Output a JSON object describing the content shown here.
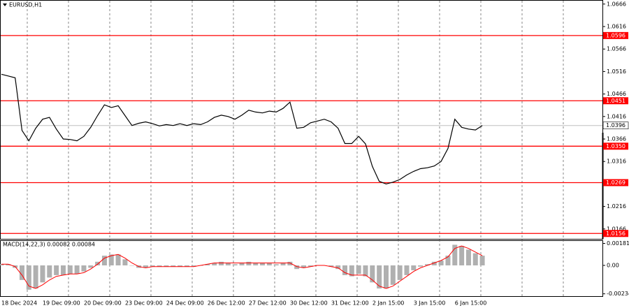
{
  "chart_data": [
    {
      "type": "line",
      "title": "EURUSD,H1",
      "categories": [
        "18 Dec 2024",
        null,
        null,
        null,
        null,
        null,
        "19 Dec 09:00",
        null,
        null,
        null,
        null,
        null,
        "20 Dec 09:00",
        null,
        null,
        null,
        null,
        null,
        "23 Dec 09:00",
        null,
        null,
        null,
        null,
        null,
        "24 Dec 09:00",
        null,
        null,
        null,
        null,
        null,
        "26 Dec 12:00",
        null,
        null,
        null,
        null,
        null,
        "27 Dec 12:00",
        null,
        null,
        null,
        null,
        null,
        "30 Dec 12:00",
        null,
        null,
        null,
        null,
        null,
        "31 Dec 12:00",
        null,
        null,
        null,
        null,
        null,
        "2 Jan 15:00",
        null,
        null,
        null,
        null,
        null,
        "3 Jan 15:00",
        null,
        null,
        null,
        null,
        null,
        "6 Jan 15:00",
        null,
        null,
        null,
        null
      ],
      "series": [
        {
          "color": "#000000",
          "values": [
            1.051,
            1.0506,
            1.0502,
            1.0385,
            1.0362,
            1.039,
            1.041,
            1.0414,
            1.0388,
            1.0366,
            1.0365,
            1.0362,
            1.0372,
            1.0392,
            1.0418,
            1.0442,
            1.0436,
            1.044,
            1.0418,
            1.0396,
            1.0401,
            1.0404,
            1.04,
            1.0395,
            1.0398,
            1.0396,
            1.04,
            1.0396,
            1.04,
            1.0398,
            1.0404,
            1.0414,
            1.0419,
            1.0416,
            1.041,
            1.0419,
            1.043,
            1.0426,
            1.0424,
            1.0428,
            1.0426,
            1.0434,
            1.0448,
            1.039,
            1.0392,
            1.0402,
            1.0406,
            1.041,
            1.0404,
            1.039,
            1.0356,
            1.0356,
            1.0372,
            1.0355,
            1.0305,
            1.0272,
            1.0266,
            1.027,
            1.0276,
            1.0286,
            1.0294,
            1.03,
            1.0302,
            1.0306,
            1.0316,
            1.0345,
            1.041,
            1.0392,
            1.0388,
            1.0386,
            1.0396
          ]
        }
      ],
      "ylim": [
        1.0144,
        1.0675
      ],
      "yticks": [
        1.0666,
        1.0616,
        1.0566,
        1.0516,
        1.0466,
        1.0416,
        1.0366,
        1.0316,
        1.0266,
        1.0216,
        1.0166
      ],
      "levels": [
        1.0596,
        1.0451,
        {
          "value": 1.035,
          "label": "1.0350"
        },
        1.0269,
        1.0156
      ],
      "level_color": "#ff0000",
      "last_price": 1.0396
    },
    {
      "type": "macd",
      "title": "MACD(14,22,3) 0.00082 0.00084",
      "histogram": {
        "color": "#b0b0b0",
        "values": [
          0.0001,
          0.0001,
          -0.0002,
          -0.0012,
          -0.002,
          -0.0019,
          -0.0014,
          -0.001,
          -0.0008,
          -0.0008,
          -0.0007,
          -0.0007,
          -0.0005,
          -0.0002,
          0.0003,
          0.0008,
          0.0009,
          0.0009,
          0.0005,
          0.0,
          -0.0002,
          -0.0002,
          -0.0001,
          -0.0001,
          -0.0001,
          -0.0001,
          -0.0001,
          -0.0001,
          -0.0001,
          0.0,
          0.0001,
          0.0002,
          0.0003,
          0.0002,
          0.0001,
          0.0002,
          0.0003,
          0.0002,
          0.0002,
          0.0002,
          0.0001,
          0.0002,
          0.0003,
          -0.0003,
          -0.0002,
          -0.0001,
          0.0,
          0.0,
          -0.0001,
          -0.0003,
          -0.0008,
          -0.0009,
          -0.0007,
          -0.0009,
          -0.0014,
          -0.0019,
          -0.0019,
          -0.0016,
          -0.0012,
          -0.0008,
          -0.0004,
          -0.0001,
          0.0001,
          0.0003,
          0.0004,
          0.0008,
          0.0017,
          0.0016,
          0.0013,
          0.001,
          0.0008
        ]
      },
      "signal": {
        "color": "#ff0000",
        "values": [
          0.0001,
          0.0001,
          -0.0001,
          -0.0008,
          -0.0017,
          -0.0019,
          -0.0016,
          -0.0012,
          -0.0009,
          -0.0008,
          -0.0007,
          -0.0007,
          -0.0006,
          -0.0003,
          0.0001,
          0.0006,
          0.0008,
          0.0009,
          0.0006,
          0.0002,
          -0.0001,
          -0.0002,
          -0.0001,
          -0.0001,
          -0.0001,
          -0.0001,
          -0.0001,
          -0.0001,
          -0.0001,
          0.0,
          0.0001,
          0.0002,
          0.0002,
          0.0002,
          0.0002,
          0.0002,
          0.0002,
          0.0002,
          0.0002,
          0.0002,
          0.0002,
          0.0002,
          0.0002,
          -0.0001,
          -0.0002,
          -0.0001,
          0.0,
          0.0,
          -0.0001,
          -0.0002,
          -0.0006,
          -0.0008,
          -0.0008,
          -0.0008,
          -0.0012,
          -0.0017,
          -0.0019,
          -0.0017,
          -0.0013,
          -0.0009,
          -0.0005,
          -0.0002,
          0.0,
          0.0002,
          0.0004,
          0.0007,
          0.0014,
          0.0016,
          0.0014,
          0.0011,
          0.0008
        ]
      },
      "ylim": [
        -0.00253,
        0.00207
      ],
      "yticks": [
        0.00181,
        {
          "value": 0,
          "label": "0.00"
        },
        -0.00234
      ]
    }
  ]
}
